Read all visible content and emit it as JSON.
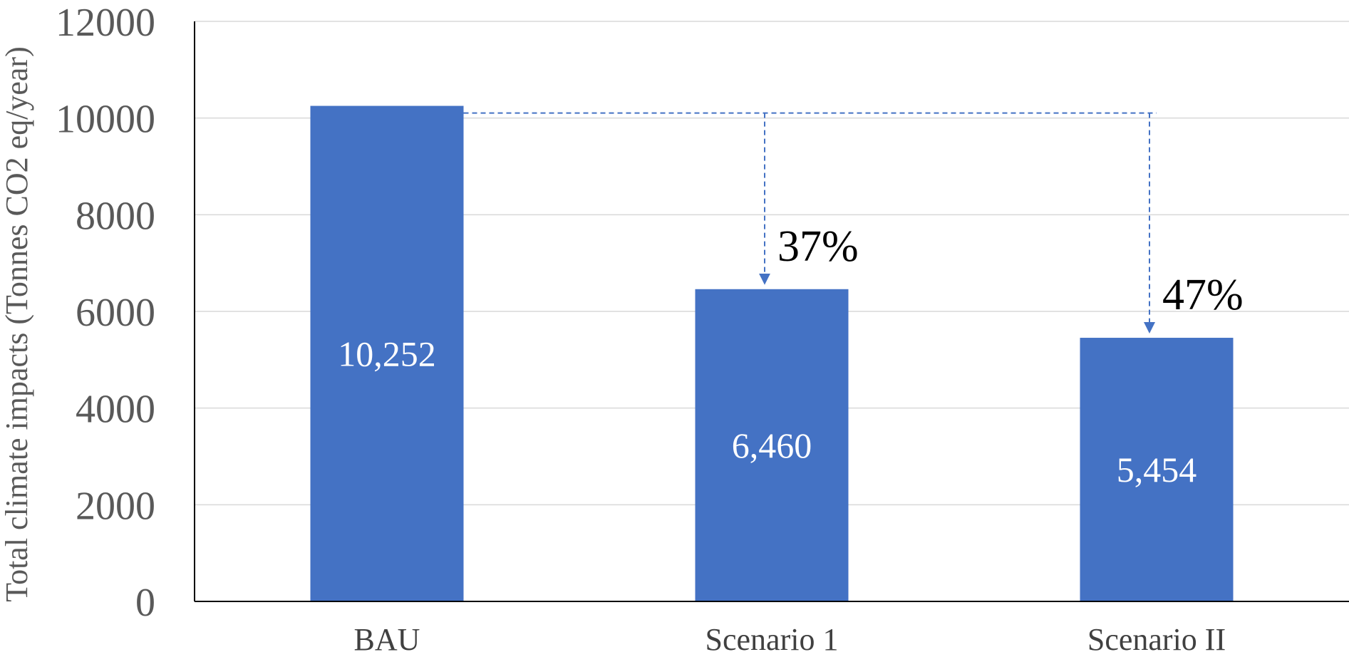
{
  "chart_data": {
    "type": "bar",
    "categories": [
      "BAU",
      "Scenario 1",
      "Scenario II"
    ],
    "values": [
      10252,
      6460,
      5454
    ],
    "data_labels": [
      "10,252",
      "6,460",
      "5,454"
    ],
    "ylabel": "Total climate impacts (Tonnes CO2 eq/year)",
    "xlabel": "",
    "ylim": [
      0,
      12000
    ],
    "yticks": [
      "0",
      "2000",
      "4000",
      "6000",
      "8000",
      "10000",
      "12000"
    ],
    "grid": true,
    "bar_color": "#4472c4",
    "annotations": [
      {
        "text": "37%",
        "from": "BAU",
        "to": "Scenario 1"
      },
      {
        "text": "47%",
        "from": "BAU",
        "to": "Scenario II"
      }
    ]
  }
}
